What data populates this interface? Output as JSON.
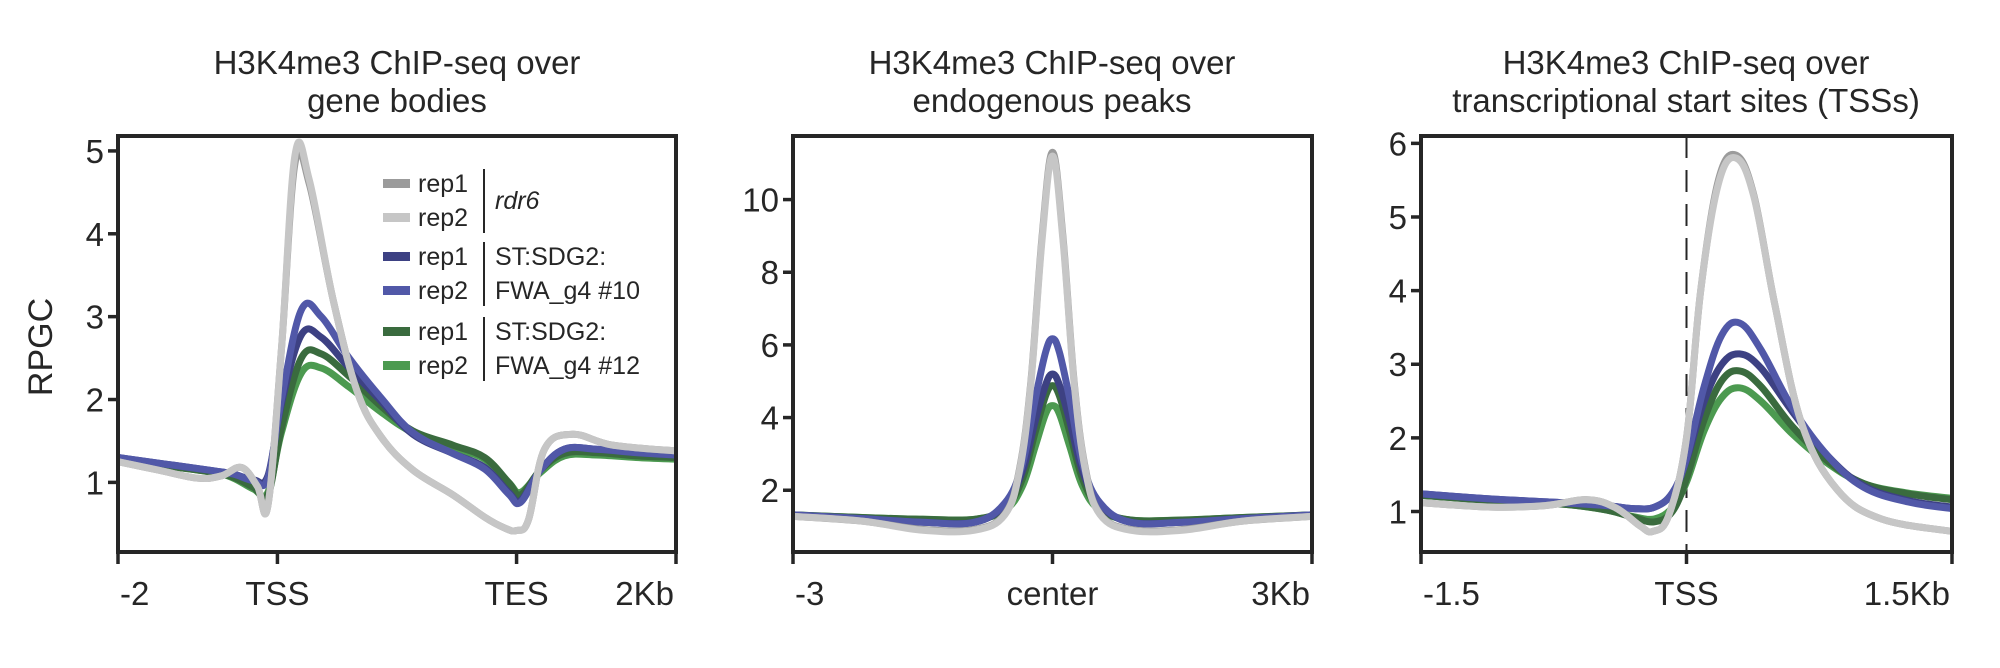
{
  "chart_data": [
    {
      "type": "line",
      "title": [
        "H3K4me3 ChIP-seq over",
        "gene bodies"
      ],
      "ylabel": "RPGC",
      "xlabel": "",
      "ylim": [
        0.16,
        5.18
      ],
      "xlim": [
        -2,
        5
      ],
      "yticks": [
        1,
        2,
        3,
        4,
        5
      ],
      "xticks": [
        {
          "value": -2,
          "label": "-2"
        },
        {
          "value": 0,
          "label": "TSS"
        },
        {
          "value": 3,
          "label": "TES"
        },
        {
          "value": 5,
          "label": "2Kb"
        }
      ],
      "grid": false,
      "legend": {
        "placement": "top-right",
        "groups": [
          {
            "label": "rdr6",
            "italic": true,
            "entries": [
              {
                "label": "rep1",
                "color": "#9b9b9b"
              },
              {
                "label": "rep2",
                "color": "#c6c6c6"
              }
            ]
          },
          {
            "label_lines": [
              "ST:SDG2:",
              "FWA_g4 #10"
            ],
            "entries": [
              {
                "label": "rep1",
                "color": "#3d4183"
              },
              {
                "label": "rep2",
                "color": "#5158a8"
              }
            ]
          },
          {
            "label_lines": [
              "ST:SDG2:",
              "FWA_g4 #12"
            ],
            "entries": [
              {
                "label": "rep1",
                "color": "#3a6b3e"
              },
              {
                "label": "rep2",
                "color": "#4c9a50"
              }
            ]
          }
        ]
      },
      "series": [
        {
          "name": "ST:SDG2:FWA_g4 #12 rep2",
          "color": "#4c9a50",
          "x": [
            -2,
            -1.4,
            -0.8,
            -0.55,
            -0.3,
            -0.12,
            0.05,
            0.3,
            0.55,
            0.9,
            1.3,
            1.7,
            2.2,
            2.6,
            2.9,
            3.05,
            3.3,
            3.6,
            4.0,
            4.5,
            5
          ],
          "y": [
            1.28,
            1.2,
            1.12,
            1.05,
            0.92,
            0.88,
            1.6,
            2.32,
            2.38,
            2.15,
            1.85,
            1.6,
            1.42,
            1.28,
            1.0,
            0.88,
            1.12,
            1.32,
            1.33,
            1.3,
            1.28
          ]
        },
        {
          "name": "ST:SDG2:FWA_g4 #12 rep1",
          "color": "#3a6b3e",
          "x": [
            -2,
            -1.4,
            -0.8,
            -0.55,
            -0.3,
            -0.12,
            0.05,
            0.3,
            0.55,
            0.9,
            1.3,
            1.7,
            2.2,
            2.6,
            2.9,
            3.05,
            3.3,
            3.6,
            4.0,
            4.5,
            5
          ],
          "y": [
            1.28,
            1.2,
            1.12,
            1.06,
            0.94,
            0.85,
            1.65,
            2.5,
            2.55,
            2.28,
            1.92,
            1.62,
            1.45,
            1.3,
            1.0,
            0.85,
            1.15,
            1.35,
            1.36,
            1.32,
            1.3
          ]
        },
        {
          "name": "ST:SDG2:FWA_g4 #10 rep1",
          "color": "#3d4183",
          "x": [
            -2,
            -1.4,
            -0.8,
            -0.55,
            -0.3,
            -0.12,
            0.05,
            0.3,
            0.55,
            0.9,
            1.3,
            1.7,
            2.2,
            2.6,
            2.9,
            3.05,
            3.3,
            3.6,
            4.0,
            4.5,
            5
          ],
          "y": [
            1.3,
            1.22,
            1.14,
            1.1,
            1.03,
            1.08,
            1.95,
            2.78,
            2.75,
            2.38,
            1.98,
            1.58,
            1.35,
            1.18,
            0.88,
            0.78,
            1.15,
            1.4,
            1.4,
            1.36,
            1.33
          ]
        },
        {
          "name": "ST:SDG2:FWA_g4 #10 rep2",
          "color": "#5158a8",
          "x": [
            -2,
            -1.4,
            -0.8,
            -0.55,
            -0.3,
            -0.12,
            0.05,
            0.3,
            0.55,
            0.9,
            1.3,
            1.7,
            2.2,
            2.6,
            2.9,
            3.05,
            3.3,
            3.6,
            4.0,
            4.5,
            5
          ],
          "y": [
            1.3,
            1.22,
            1.14,
            1.1,
            1.02,
            1.05,
            2.0,
            3.08,
            3.0,
            2.5,
            2.02,
            1.6,
            1.35,
            1.16,
            0.86,
            0.76,
            1.15,
            1.4,
            1.4,
            1.36,
            1.33
          ]
        },
        {
          "name": "rdr6 rep1",
          "color": "#9b9b9b",
          "x": [
            -2,
            -1.5,
            -1.0,
            -0.7,
            -0.45,
            -0.25,
            -0.12,
            0.05,
            0.22,
            0.4,
            0.7,
            1.0,
            1.3,
            1.7,
            2.2,
            2.6,
            2.85,
            3.0,
            3.15,
            3.35,
            3.7,
            4.2,
            5
          ],
          "y": [
            1.25,
            1.15,
            1.05,
            1.08,
            1.18,
            0.95,
            0.72,
            2.6,
            4.85,
            4.6,
            3.2,
            2.1,
            1.55,
            1.15,
            0.85,
            0.58,
            0.45,
            0.42,
            0.55,
            1.4,
            1.58,
            1.45,
            1.38
          ]
        },
        {
          "name": "rdr6 rep2",
          "color": "#c6c6c6",
          "x": [
            -2,
            -1.5,
            -1.0,
            -0.7,
            -0.45,
            -0.25,
            -0.12,
            0.05,
            0.22,
            0.4,
            0.7,
            1.0,
            1.3,
            1.7,
            2.2,
            2.6,
            2.85,
            3.0,
            3.15,
            3.35,
            3.7,
            4.2,
            5
          ],
          "y": [
            1.25,
            1.15,
            1.05,
            1.08,
            1.18,
            0.95,
            0.72,
            2.6,
            4.95,
            4.65,
            3.2,
            2.1,
            1.55,
            1.15,
            0.85,
            0.58,
            0.45,
            0.42,
            0.55,
            1.4,
            1.58,
            1.45,
            1.38
          ]
        }
      ]
    },
    {
      "type": "line",
      "title": [
        "H3K4me3 ChIP-seq over",
        "endogenous peaks"
      ],
      "ylabel": "",
      "xlabel": "",
      "ylim": [
        0.3,
        11.75
      ],
      "xlim": [
        -3,
        3
      ],
      "yticks": [
        2,
        4,
        6,
        8,
        10
      ],
      "xticks": [
        {
          "value": -3,
          "label": "-3"
        },
        {
          "value": 0,
          "label": "center"
        },
        {
          "value": 3,
          "label": "3Kb"
        }
      ],
      "grid": false,
      "series": [
        {
          "name": "ST:SDG2:FWA_g4 #12 rep2",
          "color": "#4c9a50",
          "x": [
            -3,
            -2.2,
            -1.5,
            -0.9,
            -0.55,
            -0.35,
            -0.2,
            -0.08,
            0,
            0.08,
            0.2,
            0.35,
            0.55,
            0.9,
            1.5,
            2.2,
            3
          ],
          "y": [
            1.32,
            1.25,
            1.2,
            1.2,
            1.45,
            2.1,
            3.2,
            4.1,
            4.33,
            4.1,
            3.2,
            2.1,
            1.45,
            1.18,
            1.18,
            1.25,
            1.32
          ]
        },
        {
          "name": "ST:SDG2:FWA_g4 #12 rep1",
          "color": "#3a6b3e",
          "x": [
            -3,
            -2.2,
            -1.5,
            -0.9,
            -0.55,
            -0.35,
            -0.2,
            -0.08,
            0,
            0.08,
            0.2,
            0.35,
            0.55,
            0.9,
            1.5,
            2.2,
            3
          ],
          "y": [
            1.32,
            1.25,
            1.2,
            1.2,
            1.5,
            2.3,
            3.6,
            4.6,
            4.88,
            4.6,
            3.6,
            2.3,
            1.5,
            1.18,
            1.18,
            1.25,
            1.32
          ]
        },
        {
          "name": "ST:SDG2:FWA_g4 #10 rep1",
          "color": "#3d4183",
          "x": [
            -3,
            -2.2,
            -1.5,
            -0.9,
            -0.55,
            -0.35,
            -0.2,
            -0.08,
            0,
            0.08,
            0.2,
            0.35,
            0.55,
            0.9,
            1.5,
            2.2,
            3
          ],
          "y": [
            1.32,
            1.22,
            1.12,
            1.12,
            1.6,
            2.5,
            3.9,
            4.9,
            5.2,
            4.9,
            3.9,
            2.5,
            1.6,
            1.12,
            1.12,
            1.22,
            1.32
          ]
        },
        {
          "name": "ST:SDG2:FWA_g4 #10 rep2",
          "color": "#5158a8",
          "x": [
            -3,
            -2.2,
            -1.5,
            -0.9,
            -0.55,
            -0.35,
            -0.2,
            -0.08,
            0,
            0.08,
            0.2,
            0.35,
            0.55,
            0.9,
            1.5,
            2.2,
            3
          ],
          "y": [
            1.32,
            1.22,
            1.12,
            1.12,
            1.65,
            2.7,
            4.5,
            5.8,
            6.17,
            5.8,
            4.5,
            2.7,
            1.65,
            1.12,
            1.12,
            1.22,
            1.32
          ]
        },
        {
          "name": "rdr6 rep1",
          "color": "#9b9b9b",
          "x": [
            -3,
            -2.2,
            -1.5,
            -0.9,
            -0.55,
            -0.38,
            -0.25,
            -0.12,
            0,
            0.12,
            0.25,
            0.38,
            0.55,
            0.9,
            1.5,
            2.2,
            3
          ],
          "y": [
            1.28,
            1.15,
            0.92,
            0.92,
            1.35,
            2.6,
            5.0,
            9.0,
            11.3,
            9.0,
            5.0,
            2.6,
            1.35,
            0.92,
            0.92,
            1.15,
            1.28
          ]
        },
        {
          "name": "rdr6 rep2",
          "color": "#c6c6c6",
          "x": [
            -3,
            -2.2,
            -1.5,
            -0.9,
            -0.55,
            -0.38,
            -0.25,
            -0.12,
            0,
            0.12,
            0.25,
            0.38,
            0.55,
            0.9,
            1.5,
            2.2,
            3
          ],
          "y": [
            1.28,
            1.15,
            0.9,
            0.9,
            1.33,
            2.55,
            4.95,
            8.9,
            11.2,
            8.9,
            4.95,
            2.55,
            1.33,
            0.9,
            0.9,
            1.15,
            1.28
          ]
        }
      ]
    },
    {
      "type": "line",
      "title": [
        "H3K4me3 ChIP-seq over",
        "transcriptional start sites (TSSs)"
      ],
      "ylabel": "",
      "xlabel": "",
      "ylim": [
        0.45,
        6.1
      ],
      "xlim": [
        -1.5,
        1.5
      ],
      "yticks": [
        1,
        2,
        3,
        4,
        5,
        6
      ],
      "xticks": [
        {
          "value": -1.5,
          "label": "-1.5"
        },
        {
          "value": 0,
          "label": "TSS"
        },
        {
          "value": 1.5,
          "label": "1.5Kb"
        }
      ],
      "annotations": [
        {
          "type": "vline",
          "x": 0,
          "style": "dashed"
        }
      ],
      "grid": false,
      "series": [
        {
          "name": "ST:SDG2:FWA_g4 #12 rep2",
          "color": "#4c9a50",
          "x": [
            -1.5,
            -1.1,
            -0.7,
            -0.45,
            -0.3,
            -0.18,
            -0.08,
            0,
            0.1,
            0.2,
            0.3,
            0.42,
            0.6,
            0.8,
            1.0,
            1.25,
            1.5
          ],
          "y": [
            1.22,
            1.15,
            1.1,
            1.02,
            0.93,
            0.9,
            1.05,
            1.4,
            2.1,
            2.55,
            2.68,
            2.5,
            2.05,
            1.65,
            1.38,
            1.25,
            1.18
          ]
        },
        {
          "name": "ST:SDG2:FWA_g4 #12 rep1",
          "color": "#3a6b3e",
          "x": [
            -1.5,
            -1.1,
            -0.7,
            -0.45,
            -0.3,
            -0.18,
            -0.08,
            0,
            0.1,
            0.2,
            0.3,
            0.42,
            0.6,
            0.8,
            1.0,
            1.25,
            1.5
          ],
          "y": [
            1.22,
            1.15,
            1.1,
            1.02,
            0.92,
            0.86,
            1.0,
            1.45,
            2.25,
            2.78,
            2.91,
            2.7,
            2.15,
            1.68,
            1.38,
            1.24,
            1.16
          ]
        },
        {
          "name": "ST:SDG2:FWA_g4 #10 rep1",
          "color": "#3d4183",
          "x": [
            -1.5,
            -1.1,
            -0.7,
            -0.45,
            -0.3,
            -0.18,
            -0.08,
            0,
            0.1,
            0.2,
            0.3,
            0.42,
            0.6,
            0.8,
            1.0,
            1.25,
            1.5
          ],
          "y": [
            1.24,
            1.17,
            1.12,
            1.08,
            1.04,
            1.06,
            1.25,
            1.7,
            2.5,
            3.0,
            3.14,
            2.95,
            2.35,
            1.75,
            1.35,
            1.15,
            1.06
          ]
        },
        {
          "name": "ST:SDG2:FWA_g4 #10 rep2",
          "color": "#5158a8",
          "x": [
            -1.5,
            -1.1,
            -0.7,
            -0.45,
            -0.3,
            -0.18,
            -0.08,
            0,
            0.1,
            0.2,
            0.3,
            0.42,
            0.6,
            0.8,
            1.0,
            1.25,
            1.5
          ],
          "y": [
            1.24,
            1.17,
            1.12,
            1.08,
            1.04,
            1.06,
            1.25,
            1.72,
            2.7,
            3.4,
            3.56,
            3.2,
            2.4,
            1.75,
            1.33,
            1.13,
            1.04
          ]
        },
        {
          "name": "rdr6 rep1",
          "color": "#9b9b9b",
          "x": [
            -1.5,
            -1.1,
            -0.8,
            -0.56,
            -0.4,
            -0.26,
            -0.19,
            -0.1,
            0,
            0.08,
            0.18,
            0.28,
            0.38,
            0.5,
            0.65,
            0.85,
            1.1,
            1.5
          ],
          "y": [
            1.12,
            1.06,
            1.08,
            1.16,
            1.05,
            0.8,
            0.73,
            0.95,
            2.0,
            4.0,
            5.5,
            5.84,
            5.3,
            3.8,
            2.2,
            1.3,
            0.9,
            0.73
          ]
        },
        {
          "name": "rdr6 rep2",
          "color": "#c6c6c6",
          "x": [
            -1.5,
            -1.1,
            -0.8,
            -0.56,
            -0.4,
            -0.26,
            -0.19,
            -0.1,
            0,
            0.08,
            0.18,
            0.28,
            0.38,
            0.5,
            0.65,
            0.85,
            1.1,
            1.5
          ],
          "y": [
            1.12,
            1.06,
            1.08,
            1.16,
            1.05,
            0.8,
            0.73,
            0.95,
            2.0,
            4.0,
            5.45,
            5.8,
            5.28,
            3.8,
            2.2,
            1.3,
            0.9,
            0.73
          ]
        }
      ]
    }
  ]
}
